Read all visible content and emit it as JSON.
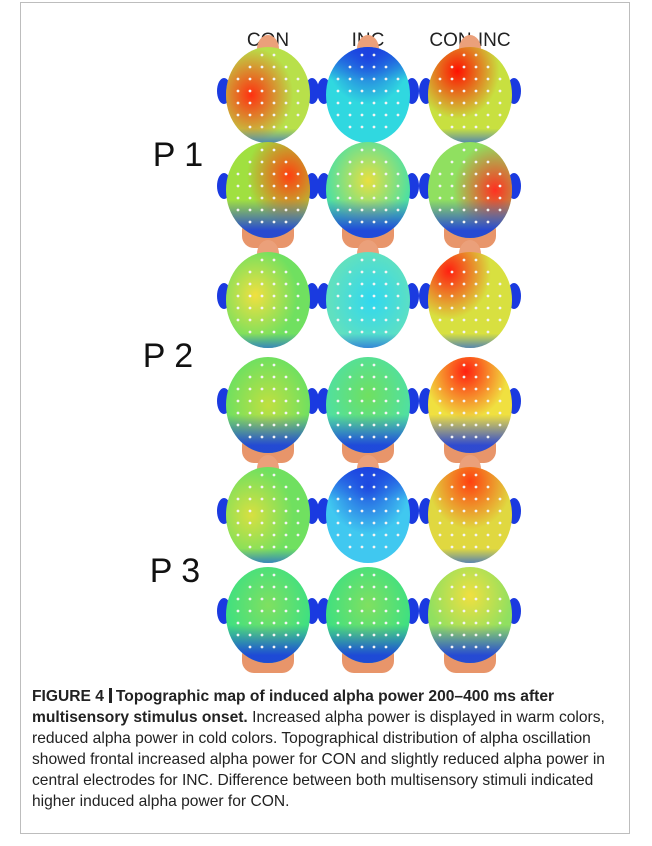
{
  "figure": {
    "columns": [
      "CON",
      "INC",
      "CON-INC"
    ],
    "rows": [
      "P 1",
      "P 2",
      "P 3"
    ],
    "caption": {
      "label": "FIGURE 4",
      "title": "Topographic map of induced alpha power 200–400 ms after multisensory stimulus onset.",
      "text": "Increased alpha power is displayed in warm colors, reduced alpha power in cold colors. Topographical distribution of alpha oscillation showed frontal increased alpha power for CON and slightly reduced alpha power in central electrodes for INC. Difference between both multisensory stimuli indicated higher induced alpha power for CON."
    }
  }
}
